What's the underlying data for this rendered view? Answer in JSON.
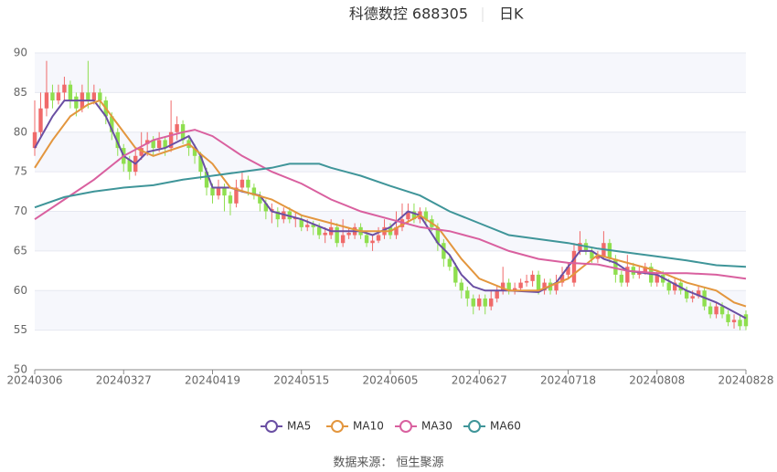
{
  "chart_data": {
    "type": "candlestick",
    "title": "科德数控 688305",
    "subtitle": "日K",
    "source": "数据来源： 恒生聚源",
    "categories": [
      "20240306",
      null,
      null,
      null,
      null,
      null,
      null,
      null,
      null,
      null,
      null,
      null,
      null,
      null,
      null,
      "20240327",
      null,
      null,
      null,
      null,
      null,
      null,
      null,
      null,
      null,
      null,
      null,
      null,
      null,
      null,
      "20240419",
      null,
      null,
      null,
      null,
      null,
      null,
      null,
      null,
      null,
      null,
      null,
      null,
      null,
      null,
      "20240515",
      null,
      null,
      null,
      null,
      null,
      null,
      null,
      null,
      null,
      null,
      null,
      null,
      null,
      null,
      "20240605",
      null,
      null,
      null,
      null,
      null,
      null,
      null,
      null,
      null,
      null,
      null,
      null,
      null,
      null,
      "20240627",
      null,
      null,
      null,
      null,
      null,
      null,
      null,
      null,
      null,
      null,
      null,
      null,
      null,
      null,
      "20240718",
      null,
      null,
      null,
      null,
      null,
      null,
      null,
      null,
      null,
      null,
      null,
      null,
      null,
      null,
      "20240808",
      null,
      null,
      null,
      null,
      null,
      null,
      null,
      null,
      null,
      null,
      null,
      null,
      null,
      null,
      "20240828"
    ],
    "candles": [
      [
        78,
        80,
        77,
        84
      ],
      [
        80,
        83,
        79.5,
        85
      ],
      [
        83,
        85,
        82,
        89
      ],
      [
        85,
        84,
        83,
        86
      ],
      [
        84,
        85,
        83.5,
        86
      ],
      [
        85,
        86,
        84,
        87
      ],
      [
        86,
        84,
        83,
        86.5
      ],
      [
        84.5,
        83,
        82,
        85
      ],
      [
        83,
        85,
        82.5,
        86
      ],
      [
        85,
        84,
        83,
        89
      ],
      [
        84,
        85,
        83.5,
        86
      ],
      [
        85,
        84,
        83,
        85.5
      ],
      [
        84,
        82,
        81,
        84.5
      ],
      [
        82,
        80,
        79,
        82.5
      ],
      [
        80,
        78,
        77,
        80.5
      ],
      [
        78,
        76,
        75,
        78.5
      ],
      [
        76.5,
        75,
        74,
        77
      ],
      [
        75,
        77,
        74.5,
        78
      ],
      [
        77,
        78,
        76.5,
        80
      ],
      [
        78.5,
        79,
        77,
        80
      ],
      [
        79,
        78,
        77,
        79.5
      ],
      [
        78,
        79,
        77.5,
        80
      ],
      [
        79,
        78,
        77,
        79.5
      ],
      [
        78,
        80,
        77.5,
        84
      ],
      [
        80,
        81,
        79,
        82
      ],
      [
        81,
        79,
        78.5,
        81.5
      ],
      [
        79,
        78,
        77,
        79.5
      ],
      [
        78,
        77,
        76,
        78.5
      ],
      [
        77,
        75,
        74,
        77.5
      ],
      [
        75,
        73,
        72,
        75.5
      ],
      [
        73,
        72,
        71,
        73.5
      ],
      [
        72,
        73,
        71.5,
        74
      ],
      [
        73,
        72,
        70,
        73.5
      ],
      [
        72,
        71,
        69.5,
        72.5
      ],
      [
        71,
        73,
        70.5,
        74
      ],
      [
        73,
        74,
        72.5,
        75
      ],
      [
        74,
        73,
        72,
        74.5
      ],
      [
        73,
        72,
        71.5,
        73.5
      ],
      [
        72,
        71,
        70,
        72.5
      ],
      [
        71,
        70,
        69,
        71.5
      ],
      [
        70,
        70.3,
        68.5,
        71
      ],
      [
        70,
        69,
        68,
        70.5
      ],
      [
        69,
        70,
        68.5,
        70.5
      ],
      [
        70,
        69,
        68.5,
        70.5
      ],
      [
        69,
        69.2,
        68,
        69.8
      ],
      [
        69,
        68,
        67.5,
        69.5
      ],
      [
        68,
        68.3,
        67.5,
        69
      ],
      [
        68.3,
        68,
        67,
        68.8
      ],
      [
        68,
        67,
        66.5,
        68.5
      ],
      [
        67,
        67.3,
        66,
        68
      ],
      [
        67,
        68,
        66.5,
        69
      ],
      [
        68,
        66,
        65.5,
        68.5
      ],
      [
        66,
        67,
        65.5,
        69
      ],
      [
        67,
        67.3,
        66.5,
        68
      ],
      [
        67,
        68,
        66.5,
        68.5
      ],
      [
        68,
        67,
        66.5,
        68.5
      ],
      [
        67,
        66,
        65.5,
        67.5
      ],
      [
        66,
        66.3,
        65,
        67
      ],
      [
        66.3,
        67,
        66,
        68
      ],
      [
        67,
        68,
        66.5,
        69
      ],
      [
        68,
        67,
        66.5,
        68.5
      ],
      [
        67,
        68,
        66.5,
        70
      ],
      [
        68,
        69,
        67.5,
        71
      ],
      [
        69,
        70,
        68.5,
        71
      ],
      [
        70,
        69,
        68.5,
        71
      ],
      [
        69,
        70,
        68.5,
        70.5
      ],
      [
        70,
        69,
        68.5,
        70.5
      ],
      [
        69,
        68,
        67.5,
        69.5
      ],
      [
        68,
        66,
        65,
        68.5
      ],
      [
        66,
        64,
        63,
        66.5
      ],
      [
        64,
        63,
        62.5,
        64.5
      ],
      [
        63,
        61,
        60.5,
        63.5
      ],
      [
        61,
        60,
        59,
        61.5
      ],
      [
        60,
        59,
        58,
        60.5
      ],
      [
        59,
        58,
        57,
        59.5
      ],
      [
        58,
        59,
        57.5,
        59.5
      ],
      [
        59,
        58,
        57,
        59.5
      ],
      [
        58,
        59,
        57.5,
        60
      ],
      [
        59,
        60,
        58.5,
        60.5
      ],
      [
        60,
        61,
        59.5,
        63
      ],
      [
        61,
        60,
        59.5,
        61.5
      ],
      [
        60,
        60.3,
        59.5,
        61
      ],
      [
        60.3,
        61,
        60,
        61.5
      ],
      [
        61,
        61.2,
        60.5,
        62
      ],
      [
        61.2,
        62,
        60.5,
        62.5
      ],
      [
        62,
        60,
        59.5,
        62.5
      ],
      [
        60,
        61,
        59.5,
        61.5
      ],
      [
        61,
        60,
        59.5,
        61.5
      ],
      [
        60,
        61,
        59.5,
        62
      ],
      [
        61,
        62,
        60.5,
        63
      ],
      [
        62,
        63,
        61.5,
        63.5
      ],
      [
        61,
        65,
        60.5,
        66
      ],
      [
        65,
        66,
        64.5,
        67.5
      ],
      [
        66,
        65,
        64.5,
        66.5
      ],
      [
        65,
        64,
        63.5,
        65.5
      ],
      [
        64,
        64.3,
        63.5,
        65
      ],
      [
        64.3,
        66,
        64,
        67.5
      ],
      [
        66,
        64,
        63.5,
        66.5
      ],
      [
        64,
        62,
        61,
        64.5
      ],
      [
        62,
        61,
        60.5,
        62.5
      ],
      [
        61,
        63,
        60.5,
        64.5
      ],
      [
        63,
        62,
        61.5,
        63.5
      ],
      [
        62,
        62.3,
        61.5,
        63
      ],
      [
        62.3,
        63,
        62,
        63.5
      ],
      [
        63,
        61,
        60.5,
        63.5
      ],
      [
        61,
        62,
        60.5,
        62.5
      ],
      [
        62,
        61,
        60.5,
        62.5
      ],
      [
        61,
        60,
        59.5,
        61.5
      ],
      [
        60,
        61,
        59.5,
        61.5
      ],
      [
        61,
        60,
        59.5,
        61.5
      ],
      [
        60,
        59,
        58.5,
        60.5
      ],
      [
        59,
        59.3,
        58.5,
        60
      ],
      [
        59.3,
        60,
        59,
        60.5
      ],
      [
        60,
        58,
        57.5,
        60.5
      ],
      [
        58,
        57,
        56.5,
        58.5
      ],
      [
        57,
        58,
        56.5,
        58.5
      ],
      [
        58,
        57,
        56.5,
        58.5
      ],
      [
        57,
        56,
        55.5,
        57.5
      ],
      [
        56,
        56.3,
        55.2,
        57
      ],
      [
        56.3,
        55.5,
        55,
        57
      ],
      [
        57,
        55.5,
        55,
        57.5
      ]
    ],
    "up_color": "#f06a6a",
    "down_color": "#8fdf4f",
    "series": [
      {
        "name": "MA5",
        "color": "#6a4fa3",
        "x": [
          0,
          3,
          5,
          8,
          10,
          12,
          15,
          17,
          19,
          22,
          26,
          28,
          30,
          33,
          35,
          38,
          40,
          45,
          50,
          55,
          57,
          60,
          63,
          65,
          68,
          70,
          72,
          74,
          76,
          80,
          85,
          88,
          90,
          92,
          94,
          96,
          98,
          100,
          105,
          110,
          115,
          120
        ],
        "values": [
          78,
          82,
          84,
          84,
          84,
          82,
          77,
          76,
          77.5,
          78,
          79.5,
          77,
          73,
          73,
          72.5,
          72,
          70,
          69,
          67.5,
          67.5,
          67,
          68,
          70,
          69.5,
          66,
          64.5,
          62,
          60.5,
          60,
          60,
          59.8,
          61,
          63,
          65,
          65,
          64,
          63.5,
          62.5,
          62,
          60,
          58.5,
          56.5
        ]
      },
      {
        "name": "MA10",
        "color": "#e3963e",
        "x": [
          0,
          3,
          6,
          9,
          11,
          14,
          17,
          20,
          26,
          30,
          33,
          40,
          45,
          50,
          55,
          60,
          65,
          68,
          72,
          75,
          80,
          85,
          90,
          95,
          100,
          105,
          110,
          115,
          118,
          120
        ],
        "values": [
          75.5,
          79,
          82,
          83.5,
          84,
          81,
          78,
          77,
          78.5,
          76,
          73,
          71.5,
          69.5,
          68.5,
          67.5,
          67.5,
          69.5,
          68,
          64,
          61.5,
          60,
          60,
          61.5,
          64.5,
          63.5,
          62.5,
          61,
          60,
          58.5,
          58
        ]
      },
      {
        "name": "MA30",
        "color": "#d9609f",
        "x": [
          0,
          5,
          10,
          15,
          20,
          25,
          27,
          30,
          35,
          40,
          45,
          50,
          55,
          60,
          65,
          70,
          75,
          80,
          85,
          90,
          95,
          100,
          105,
          110,
          115,
          120
        ],
        "values": [
          69,
          71.5,
          74,
          77,
          79,
          80,
          80.3,
          79.5,
          77,
          75,
          73.5,
          71.5,
          70,
          69,
          68,
          67.5,
          66.5,
          65,
          64,
          63.5,
          63.3,
          62.5,
          62.2,
          62.2,
          62,
          61.5
        ]
      },
      {
        "name": "MA60",
        "color": "#3f9599",
        "x": [
          0,
          5,
          10,
          15,
          20,
          25,
          30,
          35,
          40,
          43,
          48,
          50,
          55,
          60,
          65,
          70,
          75,
          80,
          85,
          90,
          95,
          100,
          105,
          110,
          115,
          120
        ],
        "values": [
          70.5,
          71.8,
          72.5,
          73,
          73.3,
          74,
          74.5,
          75,
          75.5,
          76,
          76,
          75.5,
          74.5,
          73.2,
          72,
          70,
          68.5,
          67,
          66.5,
          66,
          65.3,
          64.8,
          64.3,
          63.8,
          63.2,
          63
        ]
      }
    ],
    "ylim": [
      50,
      90
    ],
    "yticks": [
      50,
      55,
      60,
      65,
      70,
      75,
      80,
      85,
      90
    ],
    "grid": true
  }
}
